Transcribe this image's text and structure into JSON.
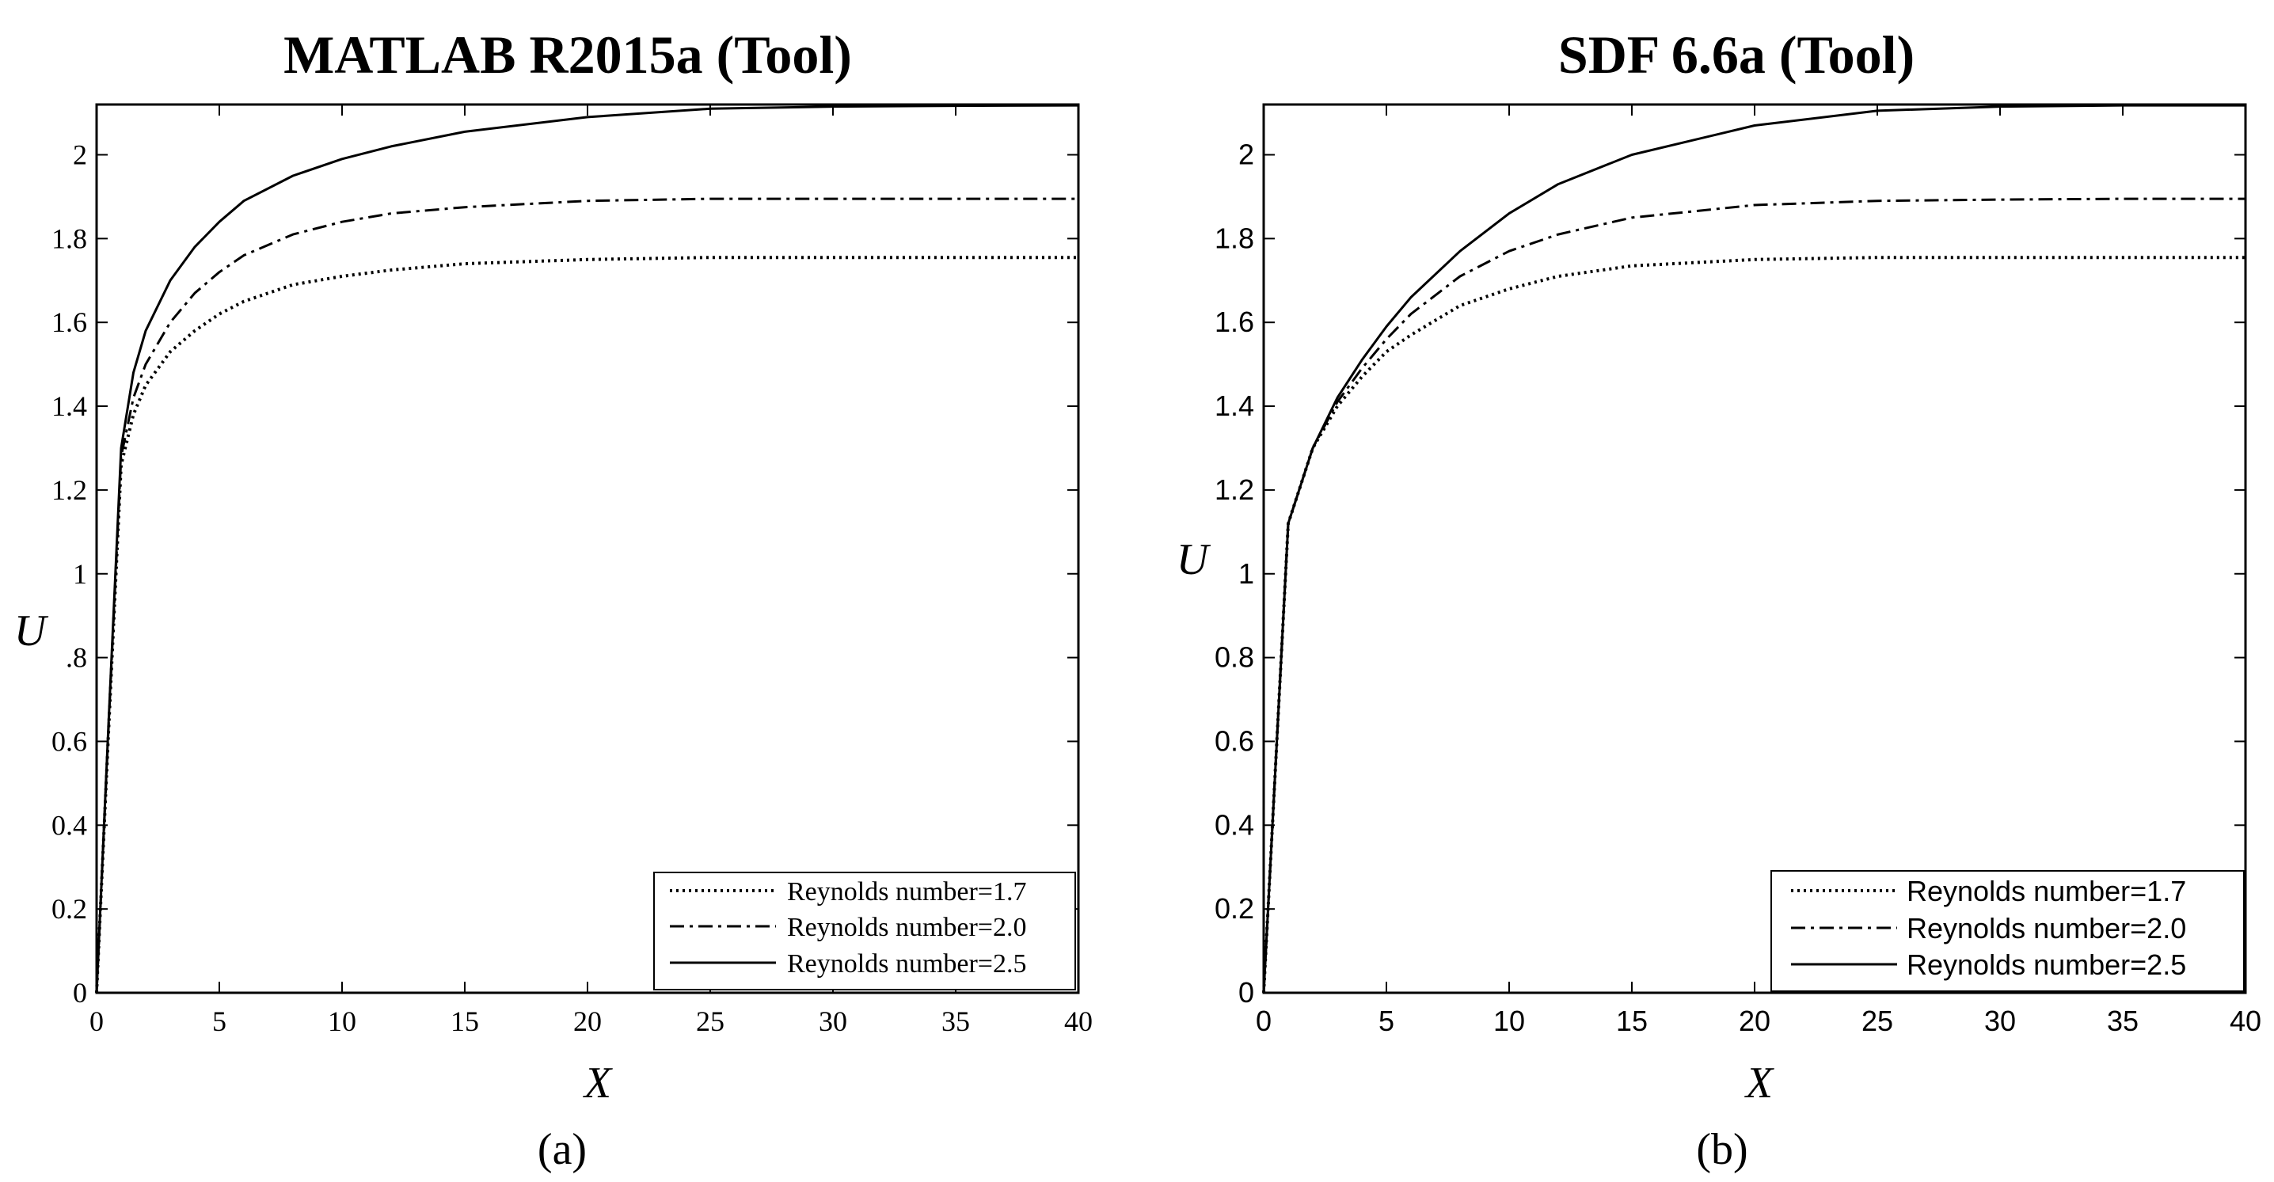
{
  "chart_data": [
    {
      "type": "line",
      "panel_label": "(a)",
      "title": "MATLAB R2015a (Tool)",
      "xlabel": "X",
      "ylabel": "U",
      "xlim": [
        0,
        40
      ],
      "ylim": [
        0,
        2.12
      ],
      "xticks": [
        0,
        5,
        10,
        15,
        20,
        25,
        30,
        35,
        40
      ],
      "xtick_labels": [
        "0",
        "5",
        "10",
        "15",
        "20",
        "25",
        "30",
        "35",
        "40"
      ],
      "yticks": [
        0,
        0.2,
        0.4,
        0.6,
        0.8,
        1,
        1.2,
        1.4,
        1.6,
        1.8,
        2
      ],
      "ytick_labels": [
        "0",
        "0.2",
        "0.4",
        "0.6",
        ".8",
        "1",
        "1.2",
        "1.4",
        "1.6",
        "1.8",
        "2"
      ],
      "grid": false,
      "legend_position": "bottom-right",
      "x": [
        0,
        0.5,
        1,
        1.5,
        2,
        3,
        4,
        5,
        6,
        8,
        10,
        12,
        15,
        20,
        25,
        30,
        35,
        40
      ],
      "series": [
        {
          "name": "Reynolds number=1.7",
          "style": "dotted",
          "values": [
            0,
            0.64,
            1.26,
            1.38,
            1.45,
            1.53,
            1.58,
            1.62,
            1.65,
            1.69,
            1.71,
            1.725,
            1.74,
            1.75,
            1.755,
            1.755,
            1.755,
            1.755
          ]
        },
        {
          "name": "Reynolds number=2.0",
          "style": "dashdot",
          "values": [
            0,
            0.65,
            1.28,
            1.42,
            1.5,
            1.6,
            1.67,
            1.72,
            1.76,
            1.81,
            1.84,
            1.86,
            1.875,
            1.89,
            1.895,
            1.895,
            1.895,
            1.895
          ]
        },
        {
          "name": "Reynolds number=2.5",
          "style": "solid",
          "values": [
            0,
            0.66,
            1.3,
            1.48,
            1.58,
            1.7,
            1.78,
            1.84,
            1.89,
            1.95,
            1.99,
            2.02,
            2.055,
            2.09,
            2.11,
            2.115,
            2.117,
            2.118
          ]
        }
      ]
    },
    {
      "type": "line",
      "panel_label": "(b)",
      "title": "SDF 6.6a (Tool)",
      "xlabel": "X",
      "ylabel": "U",
      "xlim": [
        0,
        40
      ],
      "ylim": [
        0,
        2.12
      ],
      "xticks": [
        0,
        5,
        10,
        15,
        20,
        25,
        30,
        35,
        40
      ],
      "xtick_labels": [
        "0",
        "5",
        "10",
        "15",
        "20",
        "25",
        "30",
        "35",
        "40"
      ],
      "yticks": [
        0,
        0.2,
        0.4,
        0.6,
        0.8,
        1,
        1.2,
        1.4,
        1.6,
        1.8,
        2
      ],
      "ytick_labels": [
        "0",
        "0.2",
        "0.4",
        "0.6",
        "0.8",
        "1",
        "1.2",
        "1.4",
        "1.6",
        "1.8",
        "2"
      ],
      "grid": false,
      "legend_position": "bottom-right",
      "x": [
        0,
        1,
        2,
        3,
        4,
        5,
        6,
        8,
        10,
        12,
        15,
        20,
        25,
        30,
        35,
        40
      ],
      "series": [
        {
          "name": "Reynolds number=1.7",
          "style": "dotted",
          "values": [
            0,
            1.12,
            1.3,
            1.4,
            1.47,
            1.53,
            1.57,
            1.64,
            1.68,
            1.71,
            1.735,
            1.75,
            1.755,
            1.755,
            1.755,
            1.755
          ]
        },
        {
          "name": "Reynolds number=2.0",
          "style": "dashdot",
          "values": [
            0,
            1.12,
            1.3,
            1.41,
            1.49,
            1.56,
            1.62,
            1.71,
            1.77,
            1.81,
            1.85,
            1.88,
            1.89,
            1.893,
            1.895,
            1.895
          ]
        },
        {
          "name": "Reynolds number=2.5",
          "style": "solid",
          "values": [
            0,
            1.12,
            1.3,
            1.42,
            1.51,
            1.59,
            1.66,
            1.77,
            1.86,
            1.93,
            2.0,
            2.07,
            2.105,
            2.115,
            2.118,
            2.118
          ]
        }
      ]
    }
  ]
}
